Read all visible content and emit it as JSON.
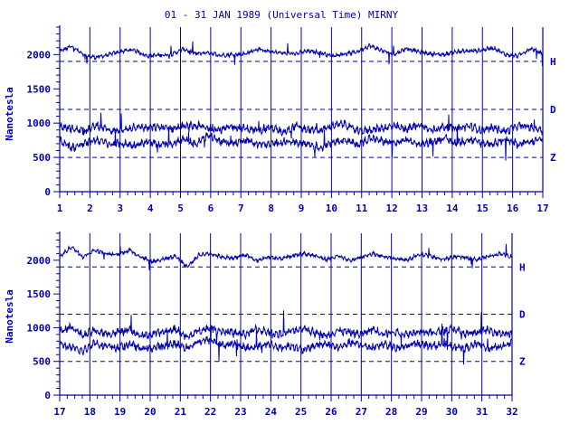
{
  "title": "01 - 31 JAN 1989 (Universal Time) MIRNY",
  "colors": {
    "ink": "#0000b0",
    "background": "#ffffff"
  },
  "chart_data": [
    {
      "type": "line",
      "ylabel": "Nanotesla",
      "xlim": [
        1,
        17
      ],
      "ylim": [
        0,
        2400
      ],
      "x_ticks": [
        1,
        2,
        3,
        4,
        5,
        6,
        7,
        8,
        9,
        10,
        11,
        12,
        13,
        14,
        15,
        16,
        17
      ],
      "y_ticks": [
        0,
        500,
        1000,
        1500,
        2000
      ],
      "reference_lines": [
        1900,
        1200,
        500
      ],
      "vertical_grid": true,
      "series": [
        {
          "name": "H",
          "baseline": 1900,
          "values": [
            2050,
            2120,
            1980,
            1960,
            2000,
            2050,
            2070,
            1980,
            1990,
            2000,
            2080,
            2010,
            2030,
            1990,
            2000,
            2010,
            2080,
            2040,
            2020,
            2010,
            2050,
            2030,
            1980,
            2010,
            2040,
            2130,
            2060,
            2000,
            2090,
            2040,
            2010,
            2000,
            2040,
            2050,
            2060,
            2100,
            2000,
            1980,
            2090,
            2010
          ]
        },
        {
          "name": "D",
          "baseline": 1200,
          "values": [
            950,
            920,
            880,
            970,
            900,
            880,
            950,
            930,
            940,
            920,
            950,
            960,
            930,
            900,
            950,
            920,
            890,
            940,
            870,
            960,
            900,
            890,
            960,
            990,
            880,
            900,
            930,
            950,
            910,
            980,
            890,
            950,
            910,
            960,
            900,
            930,
            880,
            960,
            940,
            900
          ]
        },
        {
          "name": "Z",
          "baseline": 500,
          "values": [
            750,
            640,
            700,
            760,
            690,
            700,
            680,
            720,
            690,
            700,
            760,
            690,
            830,
            730,
            700,
            760,
            690,
            690,
            730,
            720,
            700,
            640,
            730,
            760,
            680,
            780,
            740,
            700,
            760,
            690,
            720,
            780,
            710,
            760,
            710,
            700,
            760,
            690,
            720,
            770
          ]
        }
      ]
    },
    {
      "type": "line",
      "ylabel": "Nanotesla",
      "xlim": [
        17,
        32
      ],
      "ylim": [
        0,
        2400
      ],
      "x_ticks": [
        17,
        18,
        19,
        20,
        21,
        22,
        23,
        24,
        25,
        26,
        27,
        28,
        29,
        30,
        31,
        32
      ],
      "y_ticks": [
        0,
        500,
        1000,
        1500,
        2000
      ],
      "reference_lines": [
        1900,
        1200,
        500
      ],
      "vertical_grid": true,
      "series": [
        {
          "name": "H",
          "baseline": 1900,
          "values": [
            2050,
            2200,
            2050,
            2150,
            2100,
            2080,
            2150,
            2050,
            1980,
            2020,
            2060,
            1900,
            2080,
            2100,
            2050,
            2030,
            2080,
            1990,
            2050,
            2020,
            2060,
            2100,
            2070,
            2010,
            2060,
            1990,
            2050,
            2100,
            2050,
            2030,
            2000,
            2090,
            2060,
            2010,
            2050,
            2040,
            2010,
            2060,
            2100,
            2050
          ]
        },
        {
          "name": "D",
          "baseline": 1200,
          "values": [
            950,
            1020,
            880,
            960,
            900,
            930,
            960,
            880,
            900,
            940,
            980,
            850,
            960,
            1000,
            950,
            920,
            900,
            980,
            930,
            900,
            950,
            1000,
            920,
            880,
            960,
            930,
            900,
            980,
            910,
            940,
            900,
            960,
            920,
            950,
            980,
            900,
            940,
            960,
            920,
            900
          ]
        },
        {
          "name": "Z",
          "baseline": 500,
          "values": [
            760,
            700,
            650,
            780,
            720,
            700,
            760,
            690,
            700,
            730,
            760,
            700,
            800,
            820,
            740,
            760,
            700,
            720,
            760,
            700,
            740,
            660,
            740,
            760,
            700,
            780,
            740,
            700,
            760,
            690,
            730,
            770,
            720,
            760,
            710,
            700,
            760,
            690,
            720,
            770
          ]
        }
      ]
    }
  ]
}
